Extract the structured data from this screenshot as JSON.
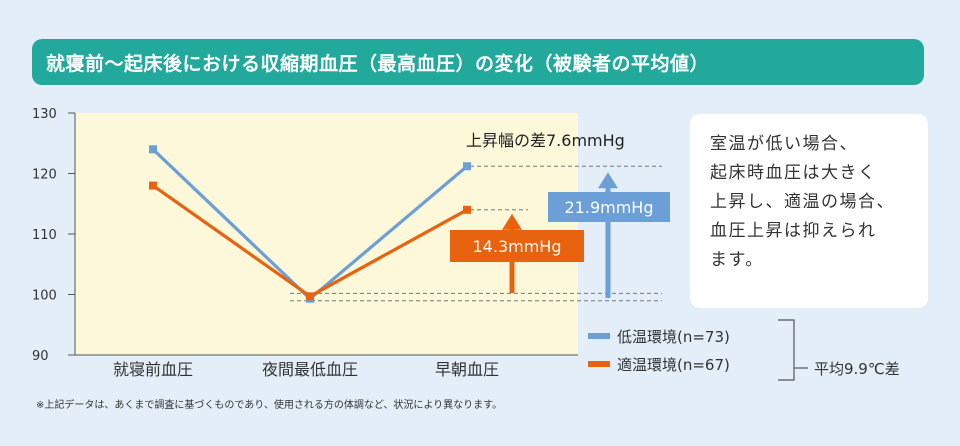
{
  "title": "就寝前～起床後における収縮期血圧（最高血圧）の変化（被験者の平均値）",
  "chart_data": {
    "type": "line",
    "categories": [
      "就寝前血圧",
      "夜間最低血圧",
      "早朝血圧"
    ],
    "ylim": [
      90,
      130
    ],
    "yticks": [
      90,
      100,
      110,
      120,
      130
    ],
    "series": [
      {
        "name": "低温環境(n=73)",
        "color": "#6b9fd6",
        "values": [
          124,
          99.3,
          121.2
        ]
      },
      {
        "name": "適温環境(n=67)",
        "color": "#e8630f",
        "values": [
          118,
          99.7,
          114
        ]
      }
    ],
    "annotations": {
      "diff_label": "上昇幅の差7.6mmHg",
      "low_rise_label": "21.9mmHg",
      "opt_rise_label": "14.3mmHg"
    },
    "legend_bracket_label": "平均9.9℃差",
    "legend_position": "bottom-right"
  },
  "note": [
    "室温が低い場合、",
    "起床時血圧は大きく",
    "上昇し、適温の場合、",
    "血圧上昇は抑えられ",
    "ます。"
  ],
  "footnote": "※上記データは、あくまで調査に基づくものであり、使用される方の体調など、状況により異なります。"
}
